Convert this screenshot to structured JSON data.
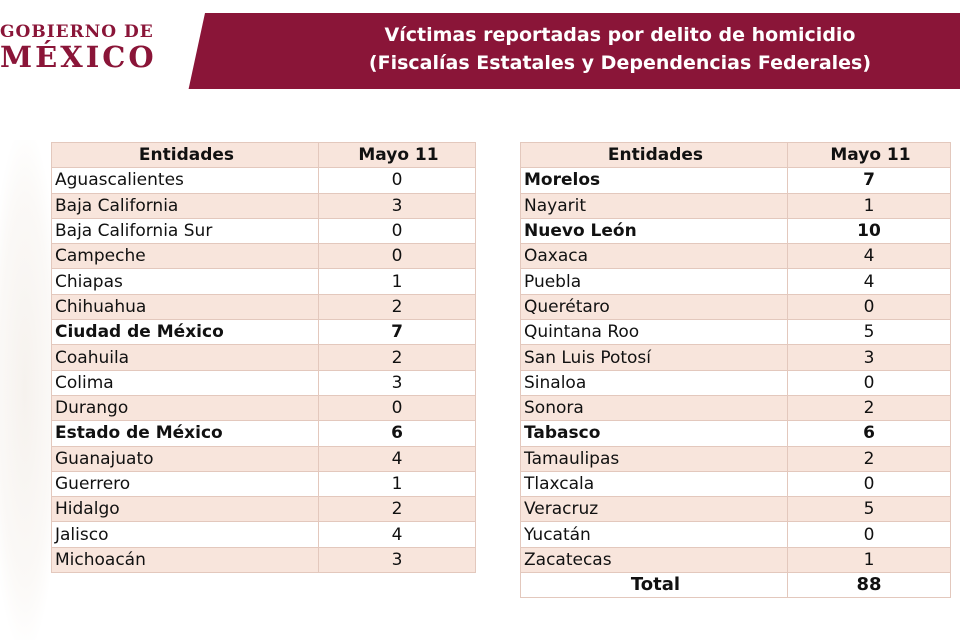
{
  "header": {
    "logo_line1": "GOBIERNO DE",
    "logo_line2": "MÉXICO",
    "title_line1": "Víctimas reportadas por delito de homicidio",
    "title_line2": "(Fiscalías Estatales y Dependencias Federales)",
    "color_primary": "#8a1538"
  },
  "tables": {
    "left": {
      "headers": [
        "Entidades",
        "Mayo 11"
      ],
      "rows": [
        {
          "name": "Aguascalientes",
          "value": "0",
          "bold": false
        },
        {
          "name": "Baja California",
          "value": "3",
          "bold": false
        },
        {
          "name": "Baja California Sur",
          "value": "0",
          "bold": false
        },
        {
          "name": "Campeche",
          "value": "0",
          "bold": false
        },
        {
          "name": "Chiapas",
          "value": "1",
          "bold": false
        },
        {
          "name": "Chihuahua",
          "value": "2",
          "bold": false
        },
        {
          "name": "Ciudad de México",
          "value": "7",
          "bold": true
        },
        {
          "name": "Coahuila",
          "value": "2",
          "bold": false
        },
        {
          "name": "Colima",
          "value": "3",
          "bold": false
        },
        {
          "name": "Durango",
          "value": "0",
          "bold": false
        },
        {
          "name": "Estado de México",
          "value": "6",
          "bold": true
        },
        {
          "name": "Guanajuato",
          "value": "4",
          "bold": false
        },
        {
          "name": "Guerrero",
          "value": "1",
          "bold": false
        },
        {
          "name": "Hidalgo",
          "value": "2",
          "bold": false
        },
        {
          "name": "Jalisco",
          "value": "4",
          "bold": false
        },
        {
          "name": "Michoacán",
          "value": "3",
          "bold": false
        }
      ]
    },
    "right": {
      "headers": [
        "Entidades",
        "Mayo 11"
      ],
      "rows": [
        {
          "name": "Morelos",
          "value": "7",
          "bold": true
        },
        {
          "name": "Nayarit",
          "value": "1",
          "bold": false
        },
        {
          "name": "Nuevo León",
          "value": "10",
          "bold": true
        },
        {
          "name": "Oaxaca",
          "value": "4",
          "bold": false
        },
        {
          "name": "Puebla",
          "value": "4",
          "bold": false
        },
        {
          "name": "Querétaro",
          "value": "0",
          "bold": false
        },
        {
          "name": "Quintana Roo",
          "value": "5",
          "bold": false
        },
        {
          "name": "San Luis Potosí",
          "value": "3",
          "bold": false
        },
        {
          "name": "Sinaloa",
          "value": "0",
          "bold": false
        },
        {
          "name": "Sonora",
          "value": "2",
          "bold": false
        },
        {
          "name": "Tabasco",
          "value": "6",
          "bold": true
        },
        {
          "name": "Tamaulipas",
          "value": "2",
          "bold": false
        },
        {
          "name": "Tlaxcala",
          "value": "0",
          "bold": false
        },
        {
          "name": "Veracruz",
          "value": "5",
          "bold": false
        },
        {
          "name": "Yucatán",
          "value": "0",
          "bold": false
        },
        {
          "name": "Zacatecas",
          "value": "1",
          "bold": false
        }
      ],
      "total_label": "Total",
      "total_value": "88"
    }
  }
}
